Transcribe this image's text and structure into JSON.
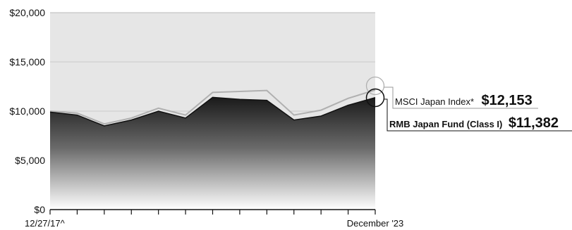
{
  "chart_data": {
    "type": "area",
    "x_start_label": "12/27/17^",
    "x_end_label": "December '23",
    "y_tick_labels": [
      "$0",
      "$5,000",
      "$10,000",
      "$15,000",
      "$20,000"
    ],
    "y_ticks": [
      0,
      5000,
      10000,
      15000,
      20000
    ],
    "ylim": [
      0,
      20000
    ],
    "x_count": 13,
    "series": [
      {
        "name": "MSCI Japan Index*",
        "end_label": "$12,153",
        "color": "#b0b0b0",
        "values": [
          10000,
          9800,
          8700,
          9300,
          10300,
          9600,
          11900,
          12000,
          12100,
          9600,
          10100,
          11300,
          12153
        ]
      },
      {
        "name": "RMB Japan Fund (Class I)",
        "end_label": "$11,382",
        "color": "#111111",
        "values": [
          9900,
          9600,
          8500,
          9100,
          10000,
          9300,
          11400,
          11200,
          11100,
          9100,
          9500,
          10600,
          11382
        ]
      }
    ],
    "grid": true,
    "legend": "right"
  }
}
